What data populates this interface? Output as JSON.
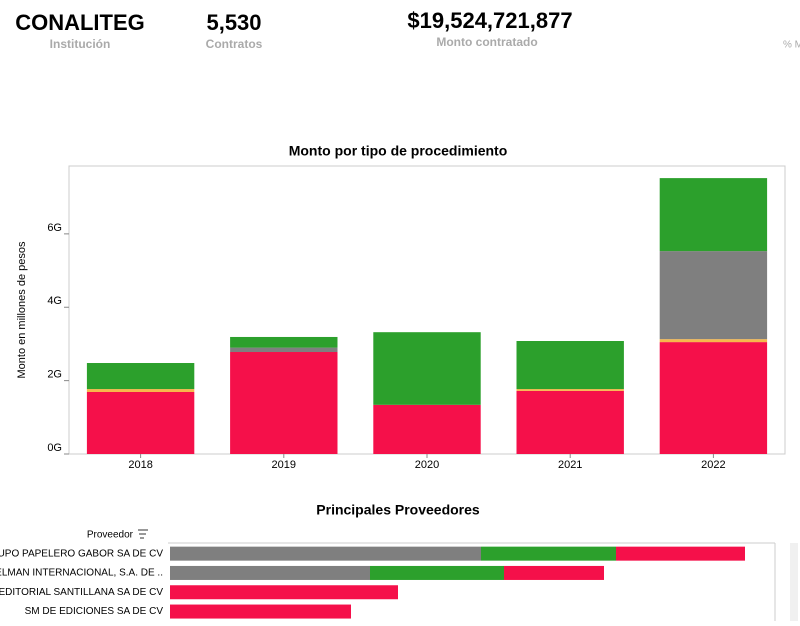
{
  "kpis": [
    {
      "value": "CONALITEG",
      "label": "Institución"
    },
    {
      "value": "5,530",
      "label": "Contratos"
    },
    {
      "value": "$19,524,721,877",
      "label": "Monto contratado"
    },
    {
      "label": "% M"
    }
  ],
  "chart_data": [
    {
      "type": "bar",
      "stacked": true,
      "title": "Monto por tipo de procedimiento",
      "y_label": "Monto en millones de pesos",
      "categories": [
        "2018",
        "2019",
        "2020",
        "2021",
        "2022"
      ],
      "series": [
        {
          "color": "#f5104a",
          "values": [
            1.69,
            2.78,
            1.34,
            1.72,
            3.05
          ]
        },
        {
          "color": "#f7b84b",
          "values": [
            0.08,
            null,
            null,
            0.05,
            0.08
          ]
        },
        {
          "color": "#7f7f7f",
          "values": [
            null,
            0.12,
            null,
            null,
            2.4
          ]
        },
        {
          "color": "#2ca02c",
          "values": [
            0.71,
            0.29,
            1.98,
            1.31,
            1.99
          ]
        }
      ],
      "ylim": [
        0,
        7.85
      ],
      "yticks": [
        {
          "value": 0,
          "label": "0G"
        },
        {
          "value": 2,
          "label": "2G"
        },
        {
          "value": 4,
          "label": "4G"
        },
        {
          "value": 6,
          "label": "6G"
        }
      ]
    },
    {
      "type": "hbar",
      "stacked": true,
      "title": "Principales Proveedores",
      "y_label": "Proveedor",
      "categories": [
        "GRUPO PAPELERO GABOR SA DE CV",
        "DELMAN INTERNACIONAL, S.A. DE ..",
        "EDITORIAL SANTILLANA SA DE CV",
        "SM DE EDICIONES SA DE CV"
      ],
      "series": [
        {
          "color": "#7f7f7f",
          "values": [
            3.11,
            2.0,
            null,
            null
          ]
        },
        {
          "color": "#2ca02c",
          "values": [
            1.35,
            1.34,
            null,
            null
          ]
        },
        {
          "color": "#f5104a",
          "values": [
            1.29,
            1.0,
            2.28,
            1.81
          ]
        }
      ],
      "xlim": [
        0,
        6.05
      ]
    }
  ]
}
